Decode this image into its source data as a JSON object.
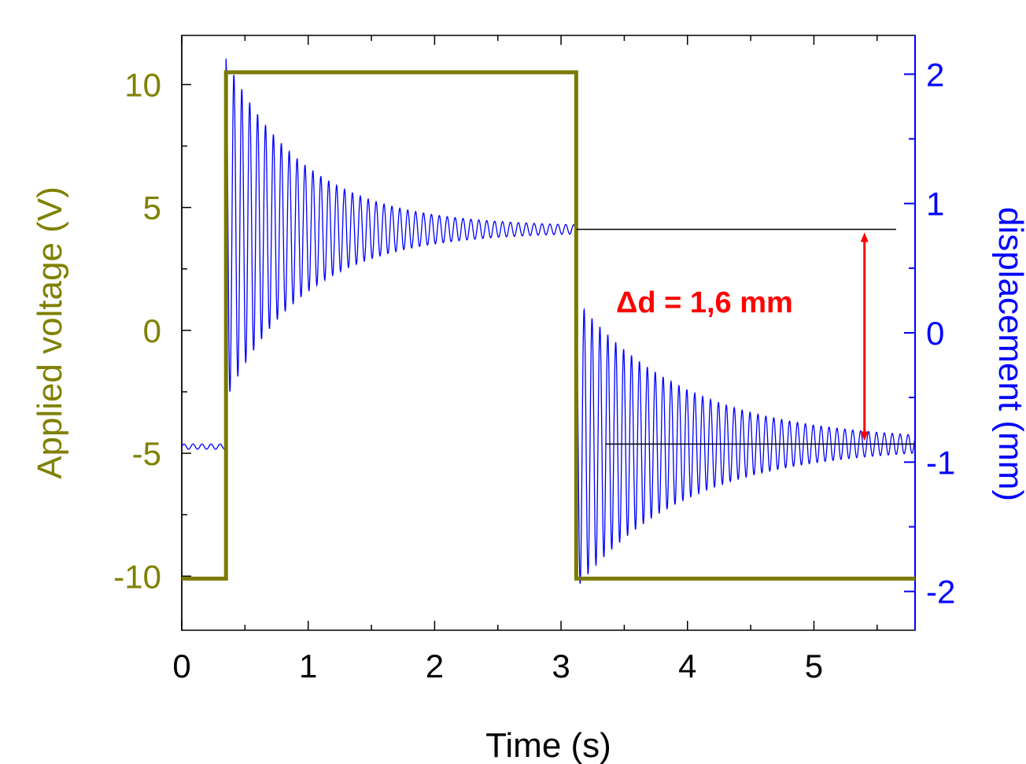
{
  "chart_data": {
    "type": "line",
    "x_axis": {
      "label": "Time  (s)",
      "range": [
        0,
        5.8
      ],
      "ticks": [
        0,
        1,
        2,
        3,
        4,
        5
      ],
      "tick_labels": [
        "0",
        "1",
        "2",
        "3",
        "4",
        "5"
      ],
      "minor_step": 0.5
    },
    "y_left_axis": {
      "label": "Applied voltage  (V)",
      "range": [
        -12.2,
        12
      ],
      "ticks": [
        -10,
        -5,
        0,
        5,
        10
      ],
      "tick_labels": [
        "-10",
        "-5",
        "0",
        "5",
        "10"
      ],
      "minor_step": 2.5,
      "color": "#808000"
    },
    "y_right_axis": {
      "label": "displacement  (mm)",
      "range": [
        -2.3,
        2.3
      ],
      "ticks": [
        -2,
        -1,
        0,
        1,
        2
      ],
      "tick_labels": [
        "-2",
        "-1",
        "0",
        "1",
        "2"
      ],
      "minor_step": 0.5,
      "color": "#0000ff"
    },
    "series": [
      {
        "axis": "left",
        "color": "#7a7a00",
        "x": [
          0,
          0.35,
          0.35,
          3.12,
          3.12,
          5.8
        ],
        "y": [
          -10.1,
          -10.1,
          10.5,
          10.5,
          -10.1,
          -10.1
        ]
      },
      {
        "axis": "right",
        "color": "#0000ff",
        "segments": [
          {
            "start": 0,
            "end": 0.34,
            "base": -0.88,
            "amp0": 0.02,
            "decay": 0
          },
          {
            "start": 0.35,
            "end": 3.12,
            "base": 0.8,
            "amp0": 1.3,
            "decay": 1.6,
            "freq": 16
          },
          {
            "start": 3.12,
            "end": 5.8,
            "base": -0.86,
            "amp0": 1.1,
            "decay": 1.15,
            "freq": 16
          }
        ]
      }
    ],
    "reference_lines": [
      {
        "x": [
          3.12,
          5.65
        ],
        "y": 0.8
      },
      {
        "x": [
          3.35,
          5.8
        ],
        "y": -0.86
      }
    ],
    "annotation": {
      "text": "Δd = 1,6 mm",
      "color": "#ff0000",
      "arrow_x": 5.4,
      "arrow_y": [
        0.8,
        -0.86
      ]
    }
  }
}
